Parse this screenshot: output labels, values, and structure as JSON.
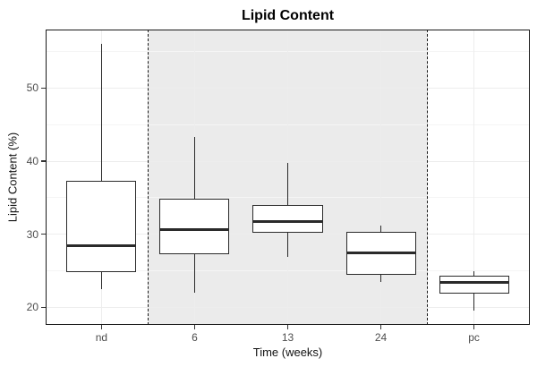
{
  "title": "Lipid Content",
  "chart_data": {
    "type": "boxplot",
    "title": "Lipid Content",
    "xlabel": "Time (weeks)",
    "ylabel": "Lipid Content (%)",
    "categories": [
      "nd",
      "6",
      "13",
      "24",
      "pc"
    ],
    "boxes": [
      {
        "category": "nd",
        "whisker_low": 22.5,
        "q1": 24.8,
        "median": 28.4,
        "q3": 37.3,
        "whisker_high": 56.0
      },
      {
        "category": "6",
        "whisker_low": 22.0,
        "q1": 27.3,
        "median": 30.6,
        "q3": 34.9,
        "whisker_high": 43.3
      },
      {
        "category": "13",
        "whisker_low": 26.9,
        "q1": 30.2,
        "median": 31.7,
        "q3": 34.0,
        "whisker_high": 39.8
      },
      {
        "category": "24",
        "whisker_low": 23.5,
        "q1": 24.5,
        "median": 27.5,
        "q3": 30.3,
        "whisker_high": 31.2
      },
      {
        "category": "pc",
        "whisker_low": 19.6,
        "q1": 21.9,
        "median": 23.4,
        "q3": 24.3,
        "whisker_high": 24.9
      }
    ],
    "yticks": [
      20,
      30,
      40,
      50
    ],
    "yticks_minor": [
      25,
      35,
      45,
      55
    ],
    "ylim": [
      17.6,
      58.0
    ],
    "grid": true,
    "legend": "none",
    "shaded_region": {
      "covers_categories": [
        "6",
        "13",
        "24"
      ],
      "from_x": 1.5,
      "to_x": 4.5
    },
    "dashed_lines_x": [
      1.5,
      4.5
    ],
    "colors": {
      "box_stroke": "#2a2a2a",
      "box_fill": "#ffffff",
      "median": "#2a2a2a",
      "dashed_line": "#1a1a1a",
      "grid_major": "#ededed",
      "grid_minor": "#f5f5f5",
      "panel_border": "#1a1a1a",
      "shade": "#ebebeb",
      "axis_text": "#4d4d4d",
      "tick_mark": "#333333",
      "title_text": "#000000"
    }
  }
}
